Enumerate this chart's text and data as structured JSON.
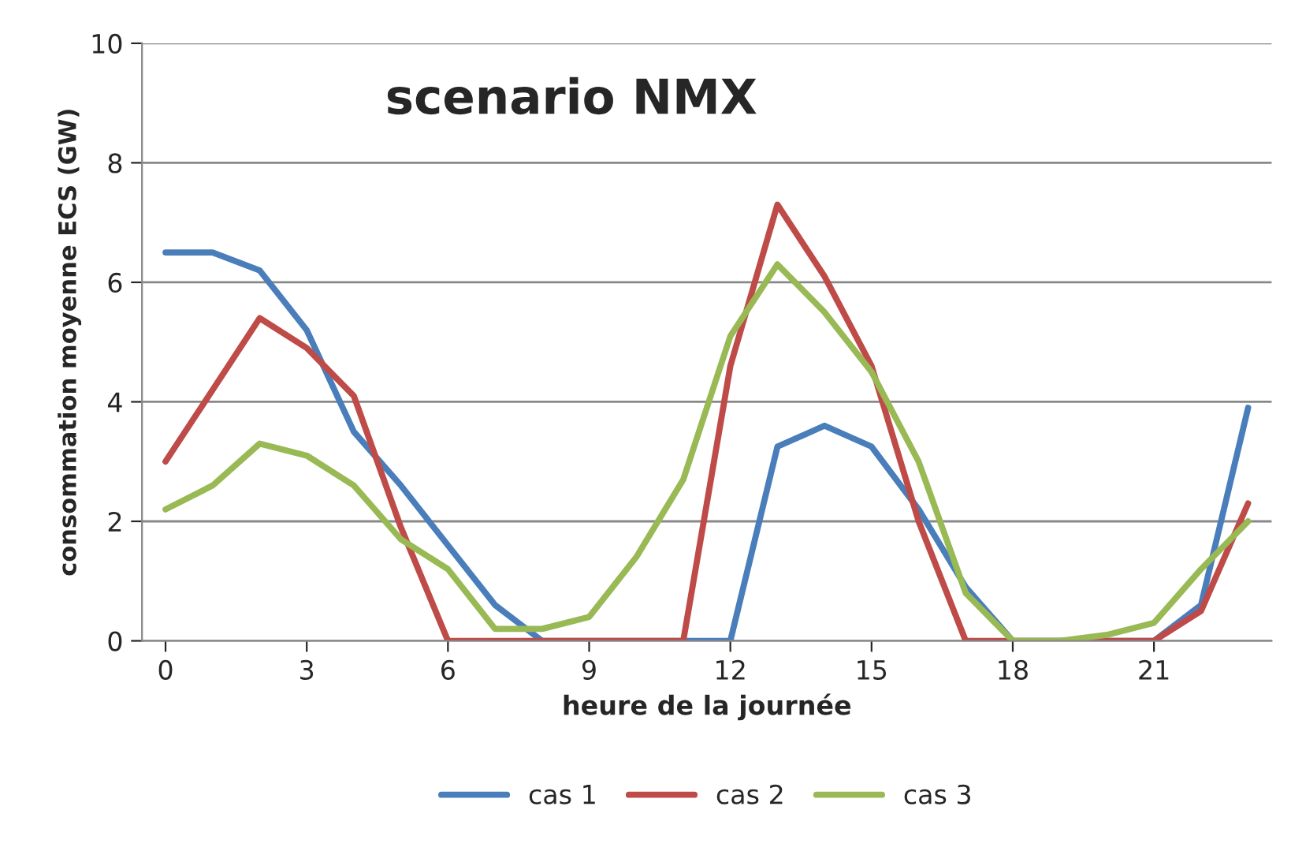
{
  "chart_data": {
    "type": "line",
    "title": "scenario NMX",
    "xlabel": "heure de la journée",
    "ylabel": "consommation moyenne ECS (GW)",
    "x": [
      0,
      1,
      2,
      3,
      4,
      5,
      6,
      7,
      8,
      9,
      10,
      11,
      12,
      13,
      14,
      15,
      16,
      17,
      18,
      19,
      20,
      21,
      22,
      23
    ],
    "series": [
      {
        "name": "cas 1",
        "color": "#4a7ebb",
        "values": [
          6.5,
          6.5,
          6.2,
          5.2,
          3.5,
          2.6,
          1.6,
          0.6,
          0,
          0,
          0,
          0,
          0,
          3.25,
          3.6,
          3.25,
          2.2,
          0.9,
          0,
          0,
          0,
          0,
          0.6,
          3.9
        ]
      },
      {
        "name": "cas 2",
        "color": "#be4b48",
        "values": [
          3.0,
          4.2,
          5.4,
          4.9,
          4.1,
          1.9,
          0,
          0,
          0,
          0,
          0,
          0,
          4.6,
          7.3,
          6.1,
          4.6,
          2.0,
          0,
          0,
          0,
          0,
          0,
          0.5,
          2.3
        ]
      },
      {
        "name": "cas 3",
        "color": "#98b954",
        "values": [
          2.2,
          2.6,
          3.3,
          3.1,
          2.6,
          1.7,
          1.2,
          0.2,
          0.2,
          0.4,
          1.4,
          2.7,
          5.1,
          6.3,
          5.5,
          4.5,
          3.0,
          0.8,
          0,
          0,
          0.1,
          0.3,
          1.2,
          2.0
        ]
      }
    ],
    "xlim": [
      -0.5,
      23.5
    ],
    "xticks": [
      0,
      3,
      6,
      9,
      12,
      15,
      18,
      21
    ],
    "ylim": [
      0,
      10
    ],
    "yticks": [
      0,
      2,
      4,
      6,
      8,
      10
    ],
    "grid": "y",
    "legend": "bottom",
    "marker": "none",
    "line_style": "solid"
  }
}
